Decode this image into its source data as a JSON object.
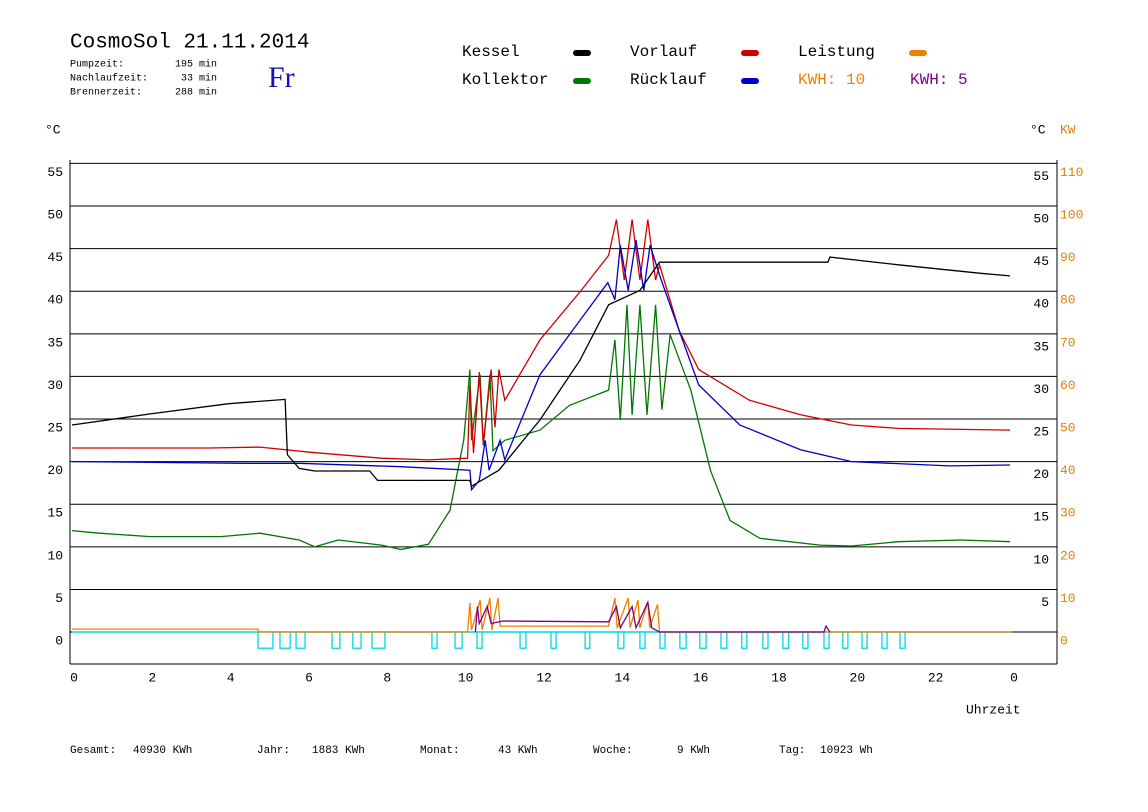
{
  "chart_data": {
    "type": "line",
    "title": "CosmoSol 21.11.2014",
    "info": [
      {
        "label": "Pumpzeit:",
        "value": "195 min"
      },
      {
        "label": "Nachlaufzeit:",
        "value": "33 min"
      },
      {
        "label": "Brennerzeit:",
        "value": "288 min"
      }
    ],
    "weekday": "Fr",
    "kwh_labels": [
      {
        "text": "KWH: 10",
        "color": "#f08000"
      },
      {
        "text": "KWH: 5",
        "color": "#800080"
      }
    ],
    "y_unit": "°C",
    "y_right_unit": "°C",
    "y2_unit": "KW",
    "x_label": "Uhrzeit",
    "xlim": [
      0,
      25.2
    ],
    "xticks": [
      0,
      2,
      4,
      6,
      8,
      10,
      12,
      14,
      16,
      18,
      20,
      22,
      {
        "value": 24,
        "label": "0"
      }
    ],
    "ylim": [
      -3.75,
      55
    ],
    "yticks": [
      0,
      5,
      10,
      15,
      20,
      25,
      30,
      35,
      40,
      45,
      50,
      55
    ],
    "y_right_ticks": [
      5,
      10,
      15,
      20,
      25,
      30,
      35,
      40,
      45,
      50,
      55
    ],
    "y2lim": [
      -7.5,
      110
    ],
    "y2ticks": [
      0,
      10,
      20,
      30,
      40,
      50,
      60,
      70,
      80,
      90,
      100,
      110
    ],
    "grid": true,
    "pump": {
      "color": "#00d8e0",
      "level": -1.9,
      "intervals": [
        [
          4.75,
          5.13
        ],
        [
          5.31,
          5.57
        ],
        [
          5.72,
          5.95
        ],
        [
          6.64,
          6.84
        ],
        [
          7.17,
          7.38
        ],
        [
          7.66,
          7.99
        ],
        [
          9.19,
          9.32
        ],
        [
          9.78,
          9.96
        ],
        [
          10.34,
          10.47
        ],
        [
          11.44,
          11.59
        ],
        [
          12.23,
          12.36
        ],
        [
          13.1,
          13.22
        ],
        [
          13.94,
          14.09
        ],
        [
          14.5,
          14.63
        ],
        [
          15.01,
          15.14
        ],
        [
          15.52,
          15.68
        ],
        [
          16.03,
          16.19
        ],
        [
          16.57,
          16.72
        ],
        [
          17.1,
          17.23
        ],
        [
          17.64,
          17.77
        ],
        [
          18.15,
          18.3
        ],
        [
          18.66,
          18.79
        ],
        [
          19.2,
          19.33
        ],
        [
          19.68,
          19.81
        ],
        [
          20.17,
          20.3
        ],
        [
          20.68,
          20.81
        ],
        [
          21.14,
          21.27
        ]
      ]
    },
    "series": [
      {
        "name": "Kessel",
        "color": "#000000",
        "x": [
          0,
          2,
          4,
          5.44,
          5.5,
          5.8,
          6.2,
          7.6,
          7.8,
          10.16,
          10.2,
          10.9,
          11.95,
          12.97,
          13.7,
          14.5,
          15.0,
          19.3,
          19.35,
          21.1,
          23.2,
          23.95
        ],
        "values": [
          24.3,
          25.6,
          26.8,
          27.3,
          20.8,
          19.2,
          18.9,
          18.9,
          17.8,
          17.8,
          17.1,
          19,
          24.9,
          31.9,
          38.4,
          40.1,
          43.4,
          43.4,
          44,
          43.1,
          42.1,
          41.8
        ]
      },
      {
        "name": "Vorlauf",
        "color": "#d00000",
        "x": [
          0,
          3.5,
          4.8,
          6.1,
          7.9,
          9.1,
          10.1,
          10.16,
          10.25,
          10.4,
          10.5,
          10.7,
          10.8,
          10.9,
          11.05,
          11.95,
          13.0,
          13.7,
          13.9,
          14.1,
          14.3,
          14.5,
          14.7,
          14.9,
          15.0,
          15.5,
          16.0,
          17.3,
          18.6,
          19.9,
          21.1,
          23.95
        ],
        "values": [
          21.6,
          21.6,
          21.7,
          21.1,
          20.4,
          20.2,
          20.4,
          29,
          21,
          30.5,
          22,
          30.8,
          24,
          30.8,
          27.2,
          34.3,
          40.1,
          44.2,
          48.4,
          41.3,
          48.4,
          41.3,
          48.4,
          41.3,
          43.1,
          35.4,
          30.8,
          27.2,
          25.5,
          24.3,
          23.9,
          23.7
        ]
      },
      {
        "name": "Leistung",
        "color": "#f08000",
        "axis": "y2",
        "x": [
          0,
          4.75,
          4.77,
          10.1,
          10.16,
          10.2,
          10.42,
          10.47,
          10.67,
          10.72,
          10.88,
          10.93,
          13.7,
          13.86,
          13.92,
          14.2,
          14.25,
          14.45,
          14.5,
          14.7,
          14.75,
          14.95,
          15.0,
          24
        ],
        "values": [
          0.7,
          0.7,
          0,
          0,
          6.8,
          0.5,
          7.5,
          0.5,
          8,
          0.5,
          8,
          1.4,
          1.4,
          8,
          1,
          8,
          1,
          7.5,
          1,
          7,
          1,
          6.5,
          0,
          0
        ]
      },
      {
        "name": "Kollektor",
        "color": "#007800",
        "x": [
          0,
          0.7,
          2,
          3.8,
          4.8,
          5.8,
          6.2,
          6.8,
          7.9,
          8.4,
          9.1,
          9.65,
          10.0,
          10.16,
          10.2,
          10.42,
          10.5,
          10.67,
          10.75,
          11.05,
          11.95,
          12.7,
          13.7,
          13.86,
          14.0,
          14.17,
          14.3,
          14.5,
          14.68,
          14.9,
          15.06,
          15.27,
          15.8,
          16.3,
          16.8,
          17.56,
          19.1,
          19.9,
          21.1,
          22.7,
          23.95
        ],
        "values": [
          11.9,
          11.6,
          11.2,
          11.2,
          11.6,
          10.8,
          10,
          10.8,
          10.2,
          9.7,
          10.3,
          14.3,
          22.5,
          30.8,
          22.5,
          30.2,
          21.9,
          30.2,
          21.3,
          22.5,
          23.7,
          26.6,
          28.4,
          34.3,
          24.9,
          38.4,
          25.5,
          38.4,
          25.5,
          38.4,
          26.1,
          34.9,
          28.4,
          19,
          13.1,
          11,
          10.2,
          10.1,
          10.6,
          10.8,
          10.6
        ]
      },
      {
        "name": "Rücklauf",
        "color": "#0000c8",
        "x": [
          0,
          4.5,
          5.8,
          8.4,
          10.16,
          10.2,
          10.4,
          10.55,
          10.65,
          10.93,
          11.05,
          11.95,
          12.97,
          13.68,
          13.86,
          14.0,
          14.2,
          14.4,
          14.6,
          14.76,
          15.0,
          15.5,
          16.0,
          17.05,
          18.6,
          19.9,
          22.4,
          23.95
        ],
        "values": [
          20,
          19.8,
          19.8,
          19.4,
          19,
          16.7,
          17.8,
          22.5,
          19,
          22.5,
          20.2,
          30.2,
          36.6,
          41,
          39,
          45.4,
          40.1,
          46,
          40.1,
          45.4,
          41.9,
          35.4,
          29,
          24.3,
          21.4,
          20,
          19.5,
          19.6
        ]
      },
      {
        "color": "#800080",
        "x": [
          10.3,
          10.35,
          10.4,
          10.6,
          10.7,
          11.0,
          13.7,
          13.9,
          14.0,
          14.3,
          14.4,
          14.7,
          14.8,
          15.0,
          19.2,
          19.25,
          19.35
        ],
        "values": [
          0,
          3,
          1,
          3,
          1,
          1.3,
          1.2,
          3,
          0.5,
          3,
          0.5,
          3.5,
          0.5,
          0,
          0,
          0.7,
          0
        ]
      }
    ]
  },
  "footer": [
    {
      "label": "Gesamt:",
      "value": "40930 KWh"
    },
    {
      "label": "Jahr:",
      "value": "1883 KWh"
    },
    {
      "label": "Monat:",
      "value": "43 KWh"
    },
    {
      "label": "Woche:",
      "value": "9 KWh"
    },
    {
      "label": "Tag:",
      "value": "10923 Wh"
    }
  ]
}
